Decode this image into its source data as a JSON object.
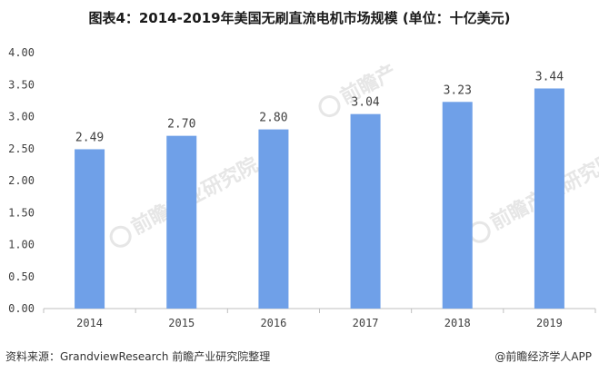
{
  "header": {
    "title": "图表4：2014-2019年美国无刷直流电机市场规模 (单位：十亿美元)"
  },
  "footer": {
    "source": "资料来源：GrandviewResearch 前瞻产业研究院整理",
    "credit": "@前瞻经济学人APP"
  },
  "watermark": {
    "text": "前瞻产业研究院",
    "short_text": "前瞻产"
  },
  "colors": {
    "bar": "#6fa0e8",
    "axis": "#bfbfbf",
    "text": "#404040"
  },
  "chart_data": {
    "type": "bar",
    "title": "图表4：2014-2019年美国无刷直流电机市场规模 (单位：十亿美元)",
    "xlabel": "",
    "ylabel": "",
    "categories": [
      "2014",
      "2015",
      "2016",
      "2017",
      "2018",
      "2019"
    ],
    "values": [
      2.49,
      2.7,
      2.8,
      3.04,
      3.23,
      3.44
    ],
    "value_labels": [
      "2.49",
      "2.70",
      "2.80",
      "3.04",
      "3.23",
      "3.44"
    ],
    "ylim": [
      0,
      4
    ],
    "yticks": [
      "0.00",
      "0.50",
      "1.00",
      "1.50",
      "2.00",
      "2.50",
      "3.00",
      "3.50",
      "4.00"
    ],
    "grid": false,
    "legend": "none"
  }
}
